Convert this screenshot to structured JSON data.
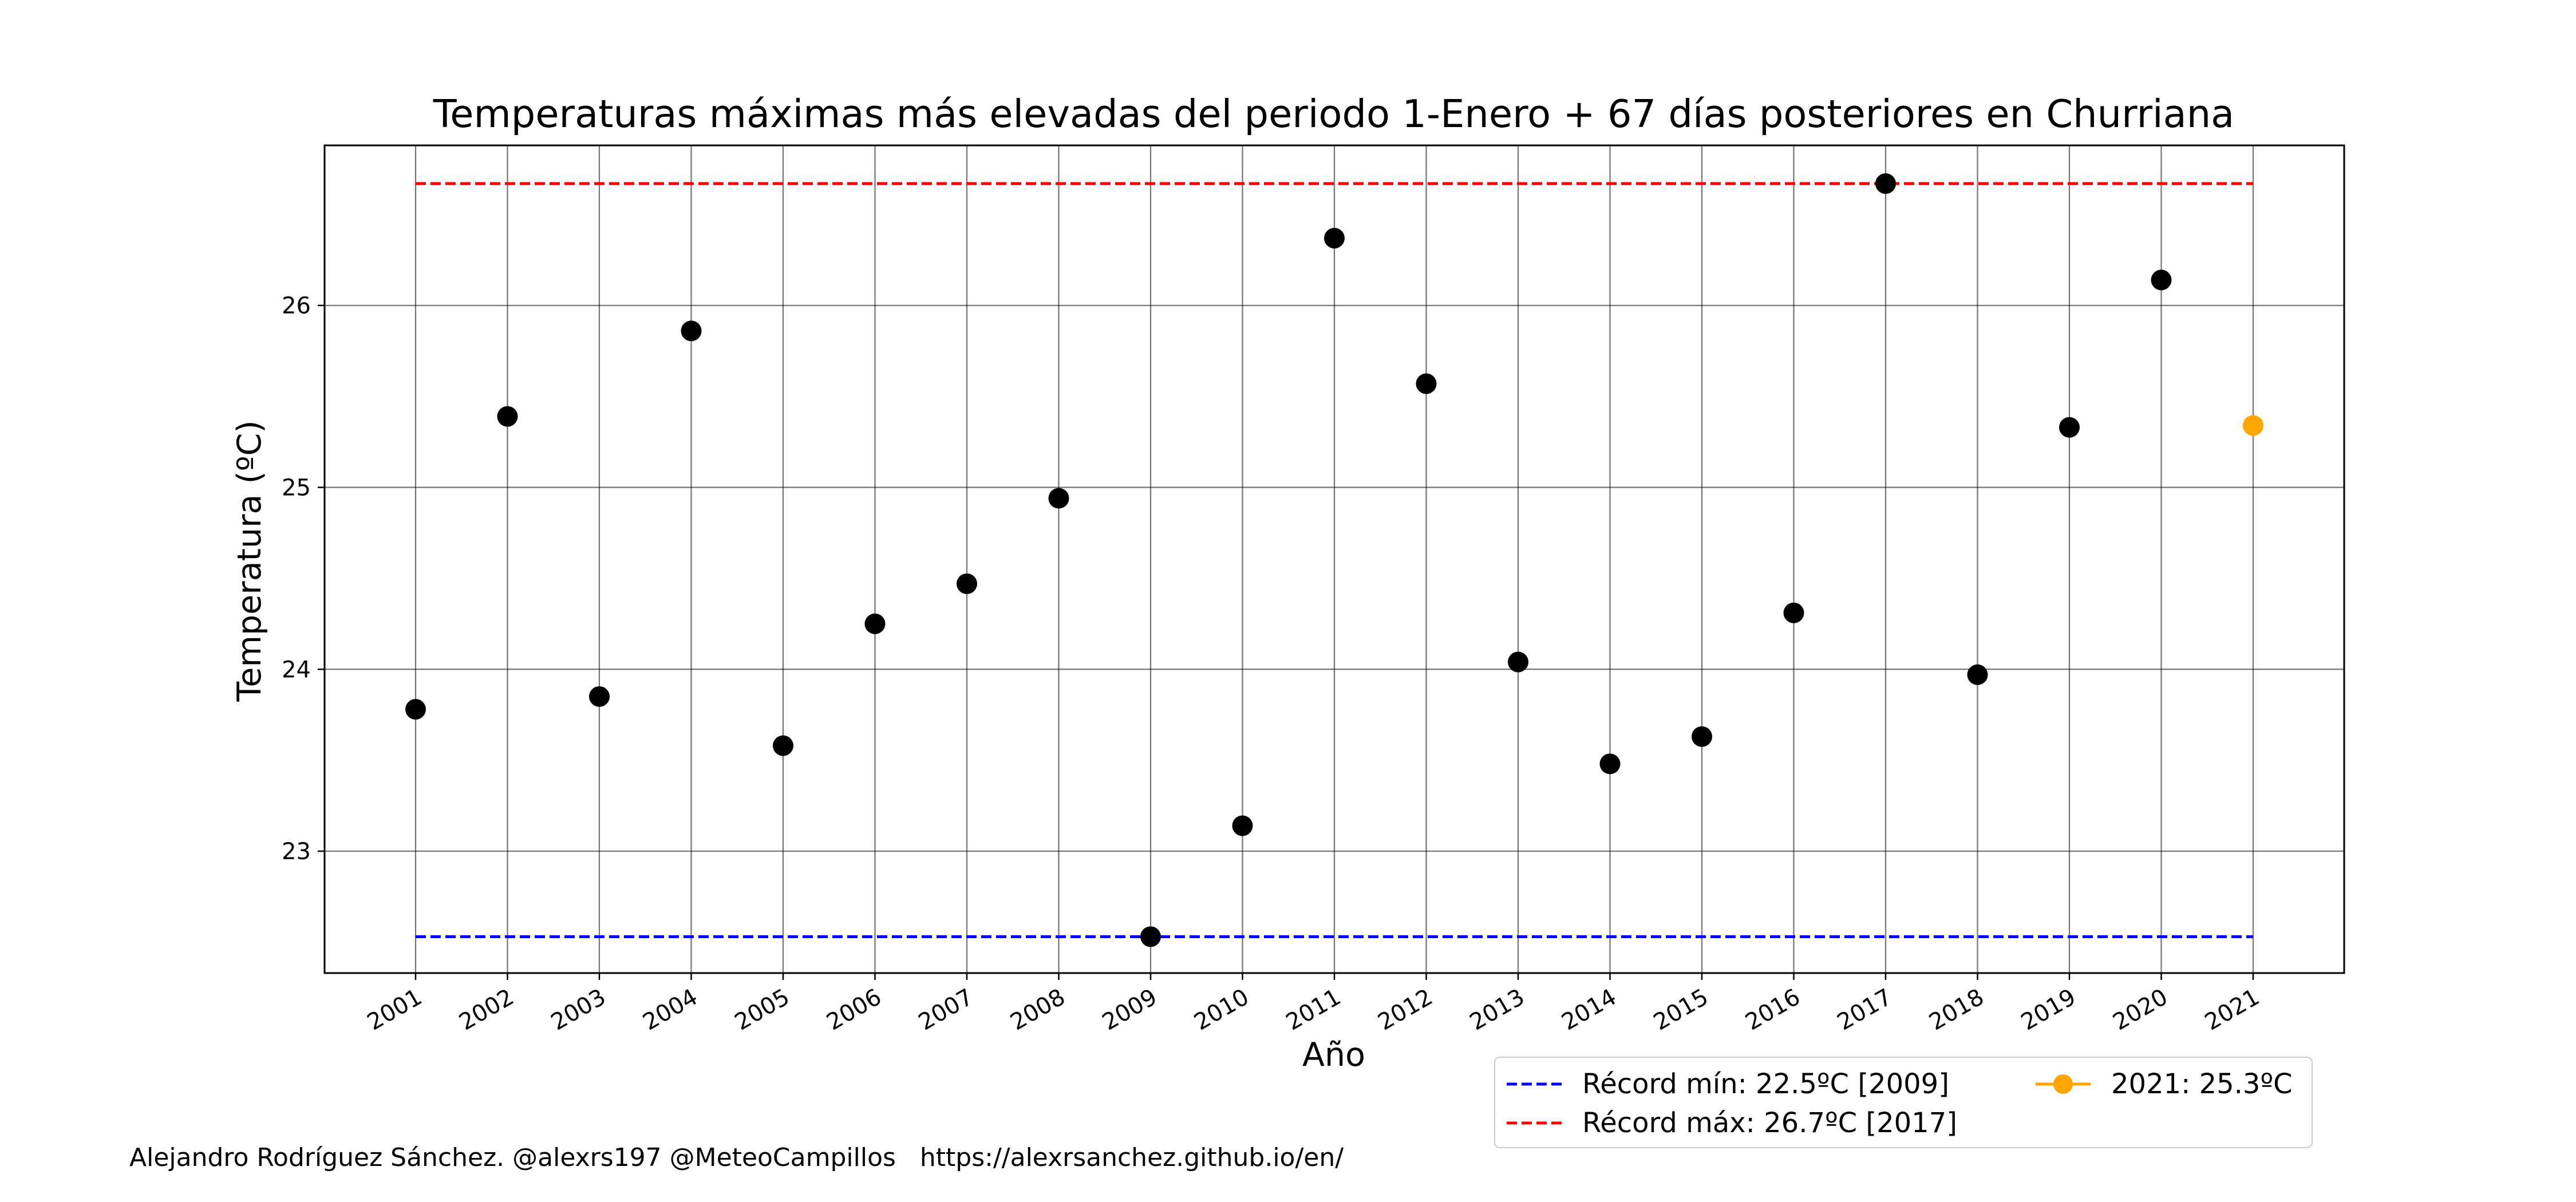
{
  "chart_data": {
    "type": "scatter",
    "title": "Temperaturas máximas más elevadas del periodo 1-Enero + 67 días posteriores en Churriana",
    "xlabel": "Año",
    "ylabel": "Temperatura (ºC)",
    "x": [
      "2001",
      "2002",
      "2003",
      "2004",
      "2005",
      "2006",
      "2007",
      "2008",
      "2009",
      "2010",
      "2011",
      "2012",
      "2013",
      "2014",
      "2015",
      "2016",
      "2017",
      "2018",
      "2019",
      "2020",
      "2021"
    ],
    "yticks": [
      23,
      24,
      25,
      26
    ],
    "ylim": [
      22.33,
      26.88
    ],
    "grid": true,
    "series": [
      {
        "values": [
          23.78,
          25.39,
          23.85,
          25.86,
          23.58,
          24.25,
          24.47,
          24.94,
          22.53,
          23.14,
          26.37,
          25.57,
          24.04,
          23.48,
          23.63,
          24.31,
          26.67,
          23.97,
          25.33,
          26.14,
          null
        ],
        "color": "#000000"
      },
      {
        "name": "2021: 25.3ºC",
        "values": [
          null,
          null,
          null,
          null,
          null,
          null,
          null,
          null,
          null,
          null,
          null,
          null,
          null,
          null,
          null,
          null,
          null,
          null,
          null,
          null,
          25.34
        ],
        "color": "#ffa500"
      }
    ],
    "reference_lines": [
      {
        "name": "Récord mín: 22.5ºC [2009]",
        "y": 22.53,
        "color": "#0000ff",
        "style": "dashed"
      },
      {
        "name": "Récord máx: 26.7ºC [2017]",
        "y": 26.67,
        "color": "#ff0000",
        "style": "dashed"
      }
    ],
    "legend": "bottom-right, outside plot"
  },
  "legend": {
    "min_label": "Récord mín: 22.5ºC [2009]",
    "max_label": "Récord máx: 26.7ºC [2017]",
    "current_label": "2021: 25.3ºC"
  },
  "credit": "Alejandro Rodríguez Sánchez. @alexrs197 @MeteoCampillos   https://alexrsanchez.github.io/en/"
}
